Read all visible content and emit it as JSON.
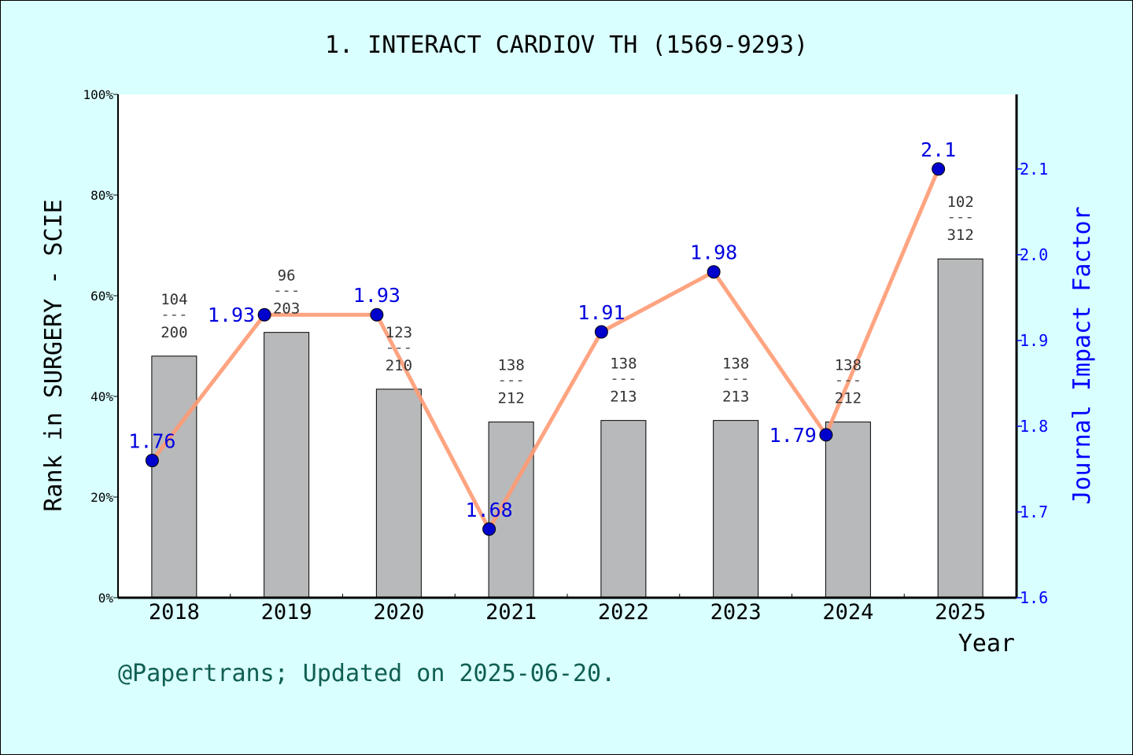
{
  "chart_data": {
    "type": "bar+line",
    "title": "1. INTERACT CARDIOV TH (1569-9293)",
    "xlabel": "Year",
    "ylabel_left": "Rank in SURGERY - SCIE",
    "ylabel_right": "Journal Impact Factor",
    "categories": [
      "2018",
      "2019",
      "2020",
      "2021",
      "2022",
      "2023",
      "2024",
      "2025"
    ],
    "rank": [
      104,
      96,
      123,
      138,
      138,
      138,
      138,
      102
    ],
    "total": [
      200,
      203,
      210,
      212,
      213,
      213,
      212,
      312
    ],
    "jif": [
      1.76,
      1.93,
      1.93,
      1.68,
      1.91,
      1.98,
      1.79,
      2.1
    ],
    "jif_labels": [
      "1.76",
      "1.93",
      "1.93",
      "1.68",
      "1.91",
      "1.98",
      "1.79",
      "2.1"
    ],
    "ylim_left": [
      0,
      100
    ],
    "yticks_left": [
      "0%",
      "20%",
      "40%",
      "60%",
      "80%",
      "100%"
    ],
    "ylim_right": [
      1.6,
      2.187
    ],
    "yticks_right": [
      "1.6",
      "1.7",
      "1.8",
      "1.9",
      "2.0",
      "2.1"
    ],
    "grid": false,
    "colors": {
      "bar": "#b8b9ba",
      "line": "#ff9a73",
      "point": "#0000cc",
      "right_axis": "#0000ff",
      "footer": "#0f5f50",
      "background": "#d9ffff"
    }
  },
  "footer": "@Papertrans; Updated on 2025-06-20."
}
